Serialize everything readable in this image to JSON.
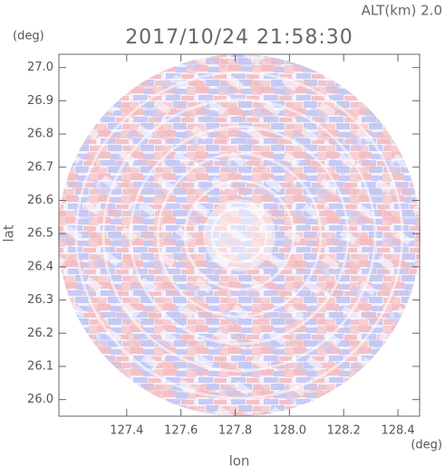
{
  "chart_data": {
    "type": "radar-field",
    "title": "2017/10/24 21:58:30",
    "annotation": "ALT(km) 2.0",
    "x_label": "lon",
    "x_unit": "(deg)",
    "y_label": "lat",
    "y_unit": "(deg)",
    "xlim": [
      127.15,
      128.48
    ],
    "xticks": [
      127.4,
      127.6,
      127.8,
      {
        "value": 128.0,
        "label": "128.0"
      },
      128.2,
      128.4
    ],
    "ylim": [
      25.95,
      27.04
    ],
    "yticks": [
      {
        "value": 26.0,
        "label": "26.0"
      },
      26.1,
      26.2,
      26.3,
      26.4,
      26.5,
      26.6,
      26.7,
      26.8,
      26.9,
      {
        "value": 27.0,
        "label": "27.0"
      }
    ]
  }
}
